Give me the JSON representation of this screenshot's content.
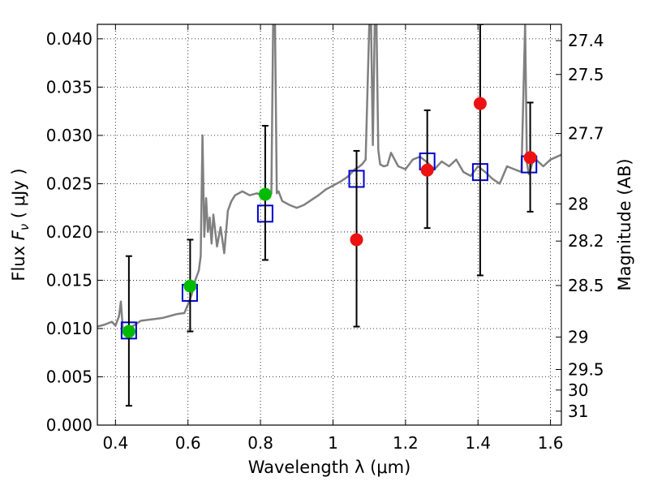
{
  "chart_data": {
    "type": "scatter",
    "xlabel": "Wavelength  λ (μm)",
    "ylabel_prefix": "Flux  ",
    "ylabel_symbol": "F",
    "ylabel_subscript": "ν",
    "ylabel_unit": "  ( μJy )",
    "y2label": "Magnitude (AB)",
    "xlim": [
      0.35,
      1.63
    ],
    "ylim": [
      0.0,
      0.0415
    ],
    "grid": true,
    "x_ticks": [
      0.4,
      0.6,
      0.8,
      1.0,
      1.2,
      1.4,
      1.6
    ],
    "x_tick_labels": [
      "0.4",
      "0.6",
      "0.8",
      "1",
      "1.2",
      "1.4",
      "1.6"
    ],
    "y_ticks": [
      0.0,
      0.005,
      0.01,
      0.015,
      0.02,
      0.025,
      0.03,
      0.035,
      0.04
    ],
    "y_tick_labels": [
      "0.000",
      "0.005",
      "0.010",
      "0.015",
      "0.020",
      "0.025",
      "0.030",
      "0.035",
      "0.040"
    ],
    "y2_ticks": [
      27.4,
      27.5,
      27.7,
      28,
      28.2,
      28.5,
      29,
      29.5,
      30,
      31
    ],
    "y2_tick_labels": [
      "27.4",
      "27.5",
      "27.7",
      "28",
      "28.2",
      "28.5",
      "29",
      "29.5",
      "30",
      "31"
    ],
    "colors": {
      "spectrum": "#808080",
      "model": "#0000cc",
      "optical": "#00bb00",
      "nir": "#ee1111",
      "errorbar": "#000000"
    },
    "spectrum": {
      "x": [
        0.35,
        0.37,
        0.39,
        0.4,
        0.41,
        0.415,
        0.42,
        0.43,
        0.45,
        0.47,
        0.49,
        0.51,
        0.53,
        0.55,
        0.57,
        0.59,
        0.6,
        0.61,
        0.62,
        0.63,
        0.635,
        0.64,
        0.645,
        0.65,
        0.655,
        0.66,
        0.665,
        0.67,
        0.68,
        0.69,
        0.7,
        0.71,
        0.72,
        0.73,
        0.75,
        0.77,
        0.79,
        0.81,
        0.82,
        0.83,
        0.835,
        0.84,
        0.845,
        0.85,
        0.86,
        0.88,
        0.9,
        0.92,
        0.94,
        0.96,
        0.98,
        1.0,
        1.02,
        1.04,
        1.05,
        1.06,
        1.07,
        1.08,
        1.09,
        1.1,
        1.105,
        1.11,
        1.115,
        1.12,
        1.125,
        1.13,
        1.14,
        1.15,
        1.16,
        1.18,
        1.2,
        1.22,
        1.24,
        1.26,
        1.28,
        1.3,
        1.32,
        1.34,
        1.36,
        1.38,
        1.4,
        1.42,
        1.44,
        1.46,
        1.48,
        1.5,
        1.52,
        1.53,
        1.535,
        1.54,
        1.545,
        1.55,
        1.56,
        1.58,
        1.6,
        1.63
      ],
      "y": [
        0.0102,
        0.0104,
        0.0107,
        0.0103,
        0.0113,
        0.0128,
        0.0101,
        0.0099,
        0.0103,
        0.0108,
        0.0109,
        0.011,
        0.0111,
        0.0113,
        0.0115,
        0.0116,
        0.0125,
        0.0135,
        0.015,
        0.016,
        0.0175,
        0.03,
        0.0195,
        0.0235,
        0.02,
        0.0215,
        0.0188,
        0.0218,
        0.0185,
        0.0205,
        0.0178,
        0.0222,
        0.0232,
        0.0238,
        0.0242,
        0.0238,
        0.024,
        0.0237,
        0.0238,
        0.024,
        0.0415,
        0.0415,
        0.024,
        0.0242,
        0.0232,
        0.0228,
        0.0225,
        0.0228,
        0.0233,
        0.0238,
        0.0244,
        0.0248,
        0.0252,
        0.0257,
        0.0261,
        0.0265,
        0.0267,
        0.027,
        0.0275,
        0.0415,
        0.0415,
        0.029,
        0.0415,
        0.0415,
        0.0285,
        0.027,
        0.0268,
        0.0269,
        0.0282,
        0.0268,
        0.0265,
        0.0275,
        0.0278,
        0.0272,
        0.0265,
        0.0273,
        0.0268,
        0.0275,
        0.0262,
        0.0258,
        0.0268,
        0.0262,
        0.0255,
        0.025,
        0.0268,
        0.0265,
        0.0262,
        0.0415,
        0.0272,
        0.026,
        0.0265,
        0.0272,
        0.0275,
        0.0268,
        0.0275,
        0.028
      ]
    },
    "model_points": {
      "x": [
        0.437,
        0.605,
        0.813,
        1.065,
        1.26,
        1.406,
        1.541
      ],
      "y": [
        0.0098,
        0.0137,
        0.0219,
        0.0255,
        0.0273,
        0.0262,
        0.027
      ]
    },
    "optical_points": {
      "x": [
        0.437,
        0.606,
        0.813
      ],
      "y": [
        0.0097,
        0.0144,
        0.0239
      ],
      "yerr_low": [
        0.002,
        0.0097,
        0.0171
      ],
      "yerr_high": [
        0.0175,
        0.0192,
        0.031
      ]
    },
    "nir_points": {
      "x": [
        1.065,
        1.26,
        1.406,
        1.544
      ],
      "y": [
        0.0192,
        0.0264,
        0.0333,
        0.0277
      ],
      "yerr_low": [
        0.0102,
        0.0204,
        0.0155,
        0.0221
      ],
      "yerr_high": [
        0.0284,
        0.0326,
        0.0415,
        0.0334
      ]
    }
  }
}
